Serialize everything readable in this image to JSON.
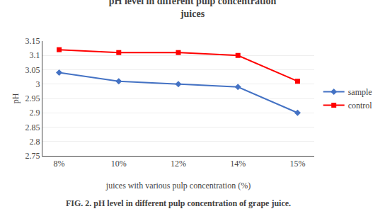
{
  "chart_data": {
    "type": "line",
    "title": "pH level in different pulp concentration\njuices",
    "xlabel": "juices with various pulp concentration (%)",
    "ylabel": "pH",
    "categories": [
      "8%",
      "10%",
      "12%",
      "14%",
      "15%"
    ],
    "series": [
      {
        "name": "sample",
        "color": "#4472C4",
        "marker": "diamond",
        "values": [
          3.04,
          3.01,
          3.0,
          2.99,
          2.9
        ]
      },
      {
        "name": "control",
        "color": "#FF0000",
        "marker": "square",
        "values": [
          3.12,
          3.11,
          3.11,
          3.1,
          3.01
        ]
      }
    ],
    "ylim": [
      2.75,
      3.15
    ],
    "yticks": [
      2.75,
      2.8,
      2.85,
      2.9,
      2.95,
      3,
      3.05,
      3.1,
      3.15
    ],
    "grid": true,
    "legend": "right",
    "annotations": [
      "FIG. 2. pH level in different pulp concentration of grape juice."
    ]
  }
}
